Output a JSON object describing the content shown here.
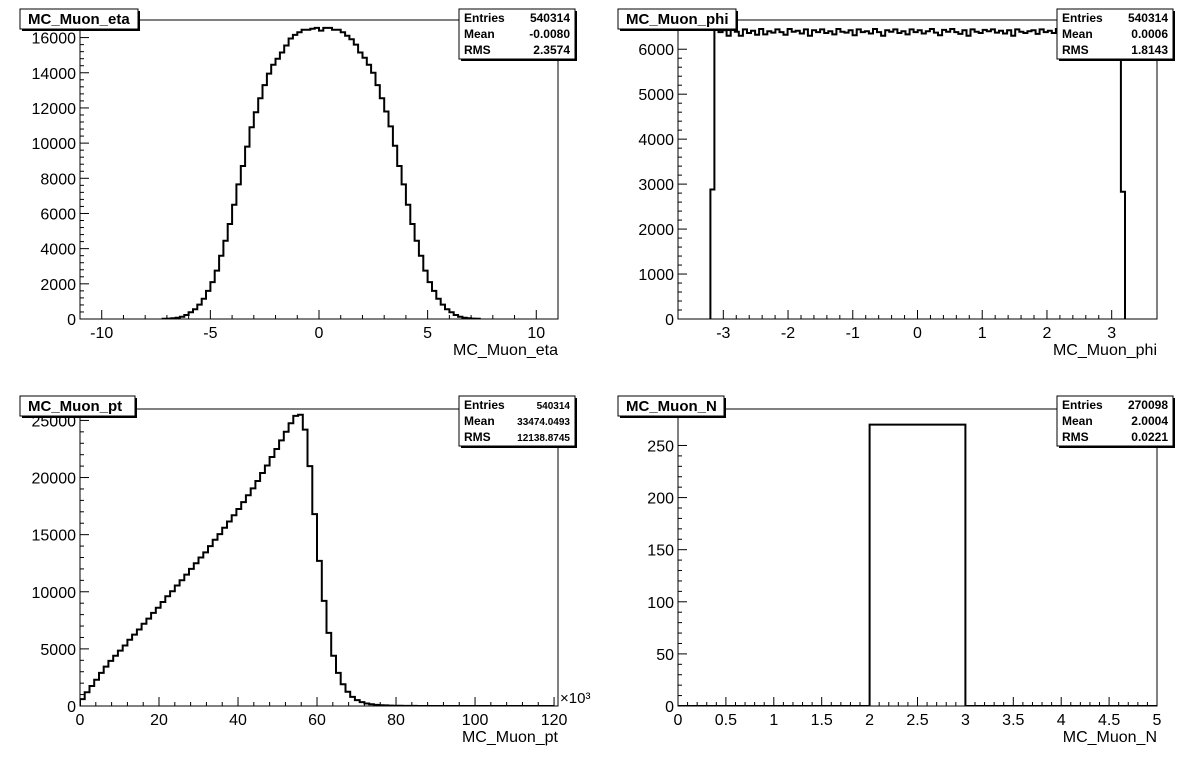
{
  "chart_data": [
    {
      "type": "bar",
      "title": "MC_Muon_eta",
      "xlabel": "MC_Muon_eta",
      "ylabel": "",
      "stats": {
        "entries_label": "Entries",
        "entries": "540314",
        "mean_label": "Mean",
        "mean": "-0.0080",
        "rms_label": "RMS",
        "rms": "2.3574"
      },
      "xlim": [
        -11,
        11
      ],
      "ylim": [
        0,
        17000
      ],
      "xticks": [
        -10,
        -5,
        0,
        5,
        10
      ],
      "yticks": [
        0,
        2000,
        4000,
        6000,
        8000,
        10000,
        12000,
        14000,
        16000
      ],
      "x_multiplier": "",
      "bins": {
        "x0": -7.2,
        "width": 0.2,
        "values": [
          10,
          20,
          40,
          70,
          130,
          230,
          380,
          560,
          820,
          1150,
          1600,
          2100,
          2750,
          3600,
          4450,
          5400,
          6500,
          7650,
          8700,
          9800,
          10900,
          11750,
          12550,
          13300,
          13950,
          14450,
          14800,
          15150,
          15550,
          15950,
          16150,
          16300,
          16450,
          16450,
          16500,
          16550,
          16400,
          16550,
          16550,
          16450,
          16450,
          16300,
          16100,
          15900,
          15600,
          15150,
          14850,
          14450,
          14000,
          13300,
          12550,
          11800,
          10950,
          9850,
          8700,
          7650,
          6500,
          5400,
          4450,
          3600,
          2750,
          2100,
          1600,
          1150,
          820,
          560,
          380,
          230,
          130,
          70,
          40,
          20,
          10
        ]
      }
    },
    {
      "type": "bar",
      "title": "MC_Muon_phi",
      "xlabel": "MC_Muon_phi",
      "ylabel": "",
      "stats": {
        "entries_label": "Entries",
        "entries": "540314",
        "mean_label": "Mean",
        "mean": "0.0006",
        "rms_label": "RMS",
        "rms": "1.8143"
      },
      "xlim": [
        -3.7,
        3.7
      ],
      "ylim": [
        0,
        6650
      ],
      "xticks": [
        -3,
        -2,
        -1,
        0,
        1,
        2,
        3
      ],
      "yticks": [
        0,
        1000,
        2000,
        3000,
        4000,
        5000,
        6000
      ],
      "x_multiplier": "",
      "bins": {
        "x0": -3.2,
        "width": 0.0628,
        "values": [
          2880,
          6450,
          6380,
          6420,
          6300,
          6450,
          6390,
          6300,
          6440,
          6360,
          6410,
          6320,
          6450,
          6330,
          6400,
          6370,
          6440,
          6380,
          6320,
          6450,
          6390,
          6410,
          6350,
          6440,
          6300,
          6420,
          6380,
          6440,
          6360,
          6400,
          6330,
          6450,
          6390,
          6370,
          6420,
          6310,
          6440,
          6380,
          6400,
          6350,
          6450,
          6380,
          6300,
          6420,
          6390,
          6440,
          6360,
          6400,
          6330,
          6440,
          6380,
          6420,
          6350,
          6400,
          6450,
          6370,
          6310,
          6430,
          6390,
          6450,
          6380,
          6340,
          6420,
          6300,
          6440,
          6390,
          6360,
          6430,
          6400,
          6440,
          6370,
          6410,
          6350,
          6420,
          6300,
          6440,
          6390,
          6360,
          6400,
          6420,
          6340,
          6440,
          6380,
          6410,
          6360,
          6450,
          6320,
          6400,
          6380,
          6440,
          6350,
          6420,
          6380,
          6300,
          6440,
          6390,
          6410,
          6360,
          6450,
          6330,
          6390,
          2830
        ]
      }
    },
    {
      "type": "bar",
      "title": "MC_Muon_pt",
      "xlabel": "MC_Muon_pt",
      "ylabel": "",
      "stats": {
        "entries_label": "Entries",
        "entries": "540314",
        "mean_label": "Mean",
        "mean": "33474.0493",
        "rms_label": "RMS",
        "rms": "12138.8745"
      },
      "xlim": [
        0,
        121
      ],
      "ylim": [
        0,
        26000
      ],
      "xticks": [
        0,
        20,
        40,
        60,
        80,
        100,
        120
      ],
      "yticks": [
        0,
        5000,
        10000,
        15000,
        20000,
        25000
      ],
      "x_multiplier": "×10³",
      "bins": {
        "x0": 0,
        "width": 1.2,
        "values": [
          600,
          1200,
          1750,
          2300,
          2900,
          3450,
          3950,
          4400,
          4850,
          5300,
          5800,
          6250,
          6700,
          7200,
          7650,
          8150,
          8600,
          9100,
          9600,
          10050,
          10550,
          11000,
          11500,
          12000,
          12500,
          13000,
          13450,
          14000,
          14550,
          15050,
          15600,
          16150,
          16700,
          17250,
          17850,
          18450,
          19050,
          19700,
          20400,
          21050,
          21800,
          22500,
          23250,
          24000,
          24750,
          25400,
          25500,
          24200,
          21000,
          16800,
          12700,
          9200,
          6400,
          4400,
          2900,
          1900,
          1250,
          800,
          520,
          340,
          220,
          150,
          100,
          70,
          50,
          35,
          25,
          18,
          12,
          8,
          5,
          3,
          2,
          1,
          1,
          0,
          0,
          0,
          0,
          0,
          0,
          0,
          0,
          0,
          0,
          0,
          0,
          0,
          0,
          0,
          0,
          0,
          0,
          0,
          0,
          0,
          0,
          0,
          0,
          0
        ]
      }
    },
    {
      "type": "bar",
      "title": "MC_Muon_N",
      "xlabel": "MC_Muon_N",
      "ylabel": "",
      "stats": {
        "entries_label": "Entries",
        "entries": "270098",
        "mean_label": "Mean",
        "mean": "2.0004",
        "rms_label": "RMS",
        "rms": "0.0221"
      },
      "xlim": [
        0,
        5
      ],
      "ylim": [
        0,
        285
      ],
      "xticks": [
        0,
        0.5,
        1,
        1.5,
        2,
        2.5,
        3,
        3.5,
        4,
        4.5,
        5
      ],
      "yticks": [
        0,
        50,
        100,
        150,
        200,
        250
      ],
      "x_multiplier": "",
      "bins": {
        "x0": 0,
        "width": 1,
        "values": [
          0,
          0,
          270,
          0,
          0
        ]
      }
    }
  ]
}
